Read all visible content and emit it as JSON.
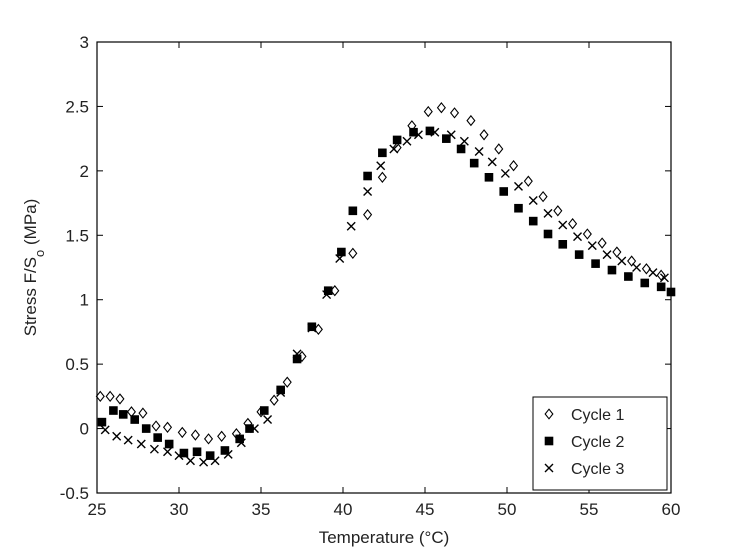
{
  "chart_data": {
    "type": "scatter",
    "xlabel": "Temperature (°C)",
    "ylabel": {
      "main": "Stress F/S",
      "sub": "o",
      "unit": " (MPa)"
    },
    "xlim": [
      25,
      60
    ],
    "ylim": [
      -0.5,
      3
    ],
    "xticks": [
      "25",
      "30",
      "35",
      "40",
      "45",
      "50",
      "55",
      "60"
    ],
    "yticks": [
      "-0.5",
      "0",
      "0.5",
      "1",
      "1.5",
      "2",
      "2.5",
      "3"
    ],
    "grid": false,
    "legend_position": "bottom-right",
    "series": [
      {
        "name": "Cycle 1",
        "marker": "diamond-open",
        "points": [
          [
            25.2,
            0.25
          ],
          [
            25.8,
            0.25
          ],
          [
            26.4,
            0.23
          ],
          [
            27.1,
            0.13
          ],
          [
            27.8,
            0.12
          ],
          [
            28.6,
            0.02
          ],
          [
            29.3,
            0.01
          ],
          [
            30.2,
            -0.03
          ],
          [
            31.0,
            -0.05
          ],
          [
            31.8,
            -0.08
          ],
          [
            32.6,
            -0.06
          ],
          [
            33.5,
            -0.04
          ],
          [
            34.2,
            0.04
          ],
          [
            35.0,
            0.13
          ],
          [
            35.8,
            0.22
          ],
          [
            36.6,
            0.36
          ],
          [
            37.5,
            0.56
          ],
          [
            38.5,
            0.77
          ],
          [
            39.5,
            1.07
          ],
          [
            40.6,
            1.36
          ],
          [
            41.5,
            1.66
          ],
          [
            42.4,
            1.95
          ],
          [
            43.3,
            2.18
          ],
          [
            44.2,
            2.35
          ],
          [
            45.2,
            2.46
          ],
          [
            46.0,
            2.49
          ],
          [
            46.8,
            2.45
          ],
          [
            47.8,
            2.39
          ],
          [
            48.6,
            2.28
          ],
          [
            49.5,
            2.17
          ],
          [
            50.4,
            2.04
          ],
          [
            51.3,
            1.92
          ],
          [
            52.2,
            1.8
          ],
          [
            53.1,
            1.69
          ],
          [
            54.0,
            1.59
          ],
          [
            54.9,
            1.51
          ],
          [
            55.8,
            1.44
          ],
          [
            56.7,
            1.37
          ],
          [
            57.6,
            1.3
          ],
          [
            58.5,
            1.24
          ],
          [
            59.4,
            1.19
          ]
        ]
      },
      {
        "name": "Cycle 2",
        "marker": "square-filled",
        "points": [
          [
            25.3,
            0.05
          ],
          [
            26.0,
            0.14
          ],
          [
            26.6,
            0.11
          ],
          [
            27.3,
            0.07
          ],
          [
            28.0,
            0.0
          ],
          [
            28.7,
            -0.07
          ],
          [
            29.4,
            -0.12
          ],
          [
            30.3,
            -0.19
          ],
          [
            31.1,
            -0.18
          ],
          [
            31.9,
            -0.21
          ],
          [
            32.8,
            -0.17
          ],
          [
            33.7,
            -0.08
          ],
          [
            34.3,
            0.0
          ],
          [
            35.2,
            0.14
          ],
          [
            36.2,
            0.3
          ],
          [
            37.2,
            0.54
          ],
          [
            38.1,
            0.79
          ],
          [
            39.1,
            1.07
          ],
          [
            39.9,
            1.37
          ],
          [
            40.6,
            1.69
          ],
          [
            41.5,
            1.96
          ],
          [
            42.4,
            2.14
          ],
          [
            43.3,
            2.24
          ],
          [
            44.3,
            2.3
          ],
          [
            45.3,
            2.31
          ],
          [
            46.3,
            2.25
          ],
          [
            47.2,
            2.17
          ],
          [
            48.0,
            2.06
          ],
          [
            48.9,
            1.95
          ],
          [
            49.8,
            1.84
          ],
          [
            50.7,
            1.71
          ],
          [
            51.6,
            1.61
          ],
          [
            52.5,
            1.51
          ],
          [
            53.4,
            1.43
          ],
          [
            54.4,
            1.35
          ],
          [
            55.4,
            1.28
          ],
          [
            56.4,
            1.23
          ],
          [
            57.4,
            1.18
          ],
          [
            58.4,
            1.13
          ],
          [
            59.4,
            1.1
          ],
          [
            60.0,
            1.06
          ]
        ]
      },
      {
        "name": "Cycle 3",
        "marker": "x",
        "points": [
          [
            25.5,
            -0.01
          ],
          [
            26.2,
            -0.06
          ],
          [
            26.9,
            -0.09
          ],
          [
            27.7,
            -0.12
          ],
          [
            28.5,
            -0.16
          ],
          [
            29.3,
            -0.18
          ],
          [
            30.0,
            -0.21
          ],
          [
            30.7,
            -0.25
          ],
          [
            31.5,
            -0.26
          ],
          [
            32.2,
            -0.25
          ],
          [
            33.0,
            -0.2
          ],
          [
            33.8,
            -0.11
          ],
          [
            34.6,
            0.0
          ],
          [
            35.4,
            0.07
          ],
          [
            36.2,
            0.28
          ],
          [
            37.2,
            0.58
          ],
          [
            38.1,
            0.78
          ],
          [
            39.0,
            1.04
          ],
          [
            39.8,
            1.32
          ],
          [
            40.5,
            1.57
          ],
          [
            41.5,
            1.84
          ],
          [
            42.3,
            2.04
          ],
          [
            43.1,
            2.17
          ],
          [
            43.9,
            2.23
          ],
          [
            44.6,
            2.28
          ],
          [
            45.6,
            2.3
          ],
          [
            46.6,
            2.28
          ],
          [
            47.4,
            2.23
          ],
          [
            48.3,
            2.15
          ],
          [
            49.1,
            2.07
          ],
          [
            49.9,
            1.98
          ],
          [
            50.7,
            1.88
          ],
          [
            51.6,
            1.77
          ],
          [
            52.5,
            1.67
          ],
          [
            53.4,
            1.58
          ],
          [
            54.3,
            1.49
          ],
          [
            55.2,
            1.42
          ],
          [
            56.1,
            1.35
          ],
          [
            57.0,
            1.3
          ],
          [
            57.9,
            1.25
          ],
          [
            58.9,
            1.21
          ],
          [
            59.6,
            1.17
          ]
        ]
      }
    ]
  }
}
